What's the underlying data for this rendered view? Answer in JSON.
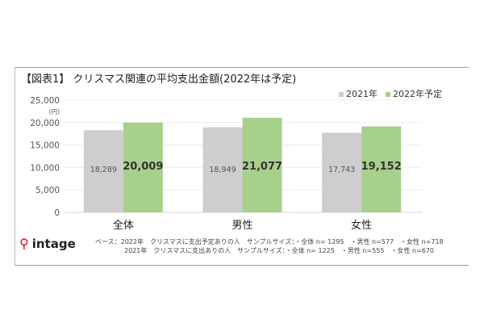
{
  "chart_data": {
    "type": "bar",
    "title": "【図表1】 クリスマス関連の平均支出金額(2022年は予定)",
    "ylabel": "(円)",
    "xlabel": "",
    "ylim": [
      0,
      25000
    ],
    "yticks": [
      0,
      5000,
      10000,
      15000,
      20000,
      25000
    ],
    "ytick_labels": [
      "0",
      "5,000",
      "10,000",
      "15,000",
      "20,000",
      "25,000"
    ],
    "categories": [
      "全体",
      "男性",
      "女性"
    ],
    "grid": true,
    "legend_position": "top-right",
    "series": [
      {
        "name": "2021年",
        "color": "#cfcdcf",
        "values": [
          18289,
          18949,
          17743
        ],
        "labels": [
          "18,289",
          "18,949",
          "17,743"
        ]
      },
      {
        "name": "2022年予定",
        "color": "#a8d08d",
        "values": [
          20009,
          21077,
          19152
        ],
        "labels": [
          "20,009",
          "21,077",
          "19,152"
        ]
      }
    ]
  },
  "logo": {
    "mark": "싀",
    "text": "intage"
  },
  "notes": [
    "ベース：2022年　クリスマスに支出予定ありの人　サンプルサイズ：・全体 n= 1295　・男性 n=577　・女性 n=718",
    "2021年　クリスマスに支出ありの人　サンプルサイズ：・全体 n= 1225　・男性 n=555　・女性 n=670"
  ]
}
